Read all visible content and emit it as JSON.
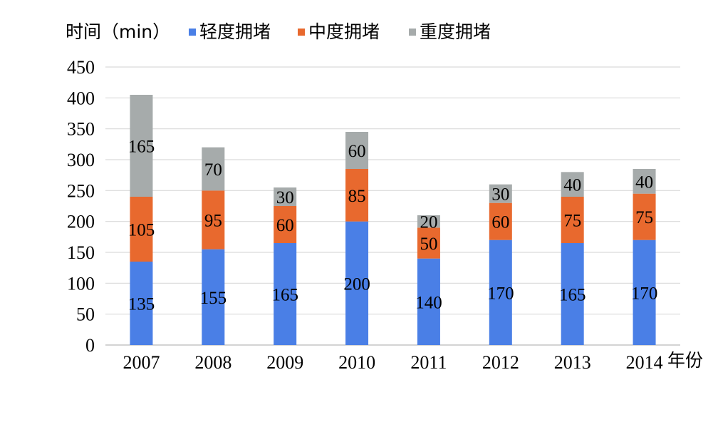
{
  "chart_data": {
    "type": "bar",
    "stacked": true,
    "categories": [
      "2007",
      "2008",
      "2009",
      "2010",
      "2011",
      "2012",
      "2013",
      "2014"
    ],
    "series": [
      {
        "name": "轻度拥堵",
        "color": "#4a7fe6",
        "values": [
          135,
          155,
          165,
          200,
          140,
          170,
          165,
          170
        ]
      },
      {
        "name": "中度拥堵",
        "color": "#e8692e",
        "values": [
          105,
          95,
          60,
          85,
          50,
          60,
          75,
          75
        ]
      },
      {
        "name": "重度拥堵",
        "color": "#a6abab",
        "values": [
          165,
          70,
          30,
          60,
          20,
          30,
          40,
          40
        ]
      }
    ],
    "ylabel": "时间（min）",
    "xlabel": "年份",
    "ylim": [
      0,
      450
    ],
    "yticks": [
      0,
      50,
      100,
      150,
      200,
      250,
      300,
      350,
      400,
      450
    ],
    "grid": true,
    "legend_position": "top"
  }
}
